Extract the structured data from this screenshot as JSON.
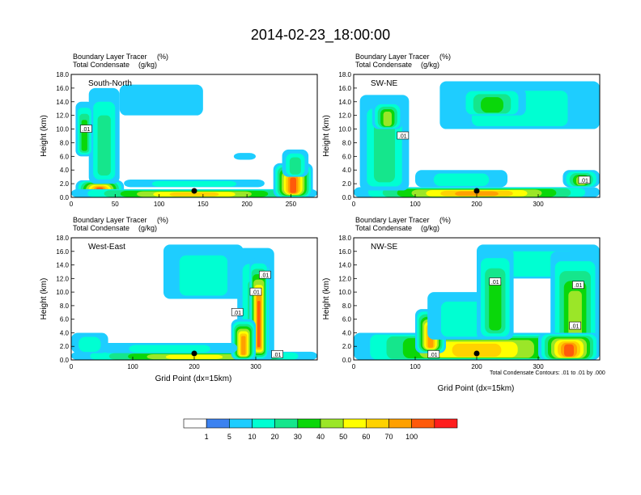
{
  "figure": {
    "title": "2014-02-23_18:00:00",
    "xlabel": "Grid Point (dx=15km)",
    "contour_note": "Total Condensate Contours: .01 to .01 by .000"
  },
  "chart_data": {
    "type": "heatmap",
    "title": "2014-02-23_18:00:00",
    "colorbar": {
      "levels": [
        "1",
        "5",
        "10",
        "20",
        "30",
        "40",
        "50",
        "60",
        "70",
        "100"
      ],
      "colors": [
        "#ffffff",
        "#3c82f0",
        "#1ecdff",
        "#00ffd2",
        "#15e68c",
        "#0ad70a",
        "#9be628",
        "#ffff00",
        "#ffd200",
        "#ffa000",
        "#ff5a0a",
        "#ff1e1e"
      ]
    },
    "panels": [
      {
        "id": "south-north",
        "label": "South-North",
        "subtitle_left": [
          "Boundary Layer Tracer",
          "Total Condensate"
        ],
        "subtitle_right": [
          "(%)",
          "(g/kg)"
        ],
        "ylabel": "Height (km)",
        "ylim": [
          0,
          18
        ],
        "yticks": [
          "0.0",
          "2.0",
          "4.0",
          "6.0",
          "8.0",
          "10.0",
          "12.0",
          "14.0",
          "16.0",
          "18.0"
        ],
        "xlim": [
          0,
          280
        ],
        "xticks": [
          {
            "v": 0,
            "t": "0"
          },
          {
            "v": 50,
            "t": "50"
          },
          {
            "v": 100,
            "t": "100"
          },
          {
            "v": 150,
            "t": "150"
          },
          {
            "v": 200,
            "t": "200"
          },
          {
            "v": 250,
            "t": "250"
          }
        ],
        "marker_x": 140,
        "contour_labels": [
          {
            "x": 17,
            "y": 10,
            "t": ".01"
          }
        ],
        "blobs": [
          {
            "x": [
              5,
              60
            ],
            "y": [
              0,
              2.5
            ],
            "v": 9
          },
          {
            "x": [
              0,
              280
            ],
            "y": [
              0,
              1.2
            ],
            "v": 7
          },
          {
            "x": [
              20,
              55
            ],
            "y": [
              2,
              16
            ],
            "v": 3
          },
          {
            "x": [
              5,
              25
            ],
            "y": [
              6,
              14
            ],
            "v": 4
          },
          {
            "x": [
              55,
              150
            ],
            "y": [
              12,
              16.5
            ],
            "v": 1
          },
          {
            "x": [
              230,
              275
            ],
            "y": [
              0,
              5
            ],
            "v": 9
          },
          {
            "x": [
              240,
              270
            ],
            "y": [
              3,
              7
            ],
            "v": 3
          },
          {
            "x": [
              185,
              210
            ],
            "y": [
              5.5,
              6.5
            ],
            "v": 1
          },
          {
            "x": [
              60,
              220
            ],
            "y": [
              1.5,
              2.6
            ],
            "v": 2
          }
        ]
      },
      {
        "id": "sw-ne",
        "label": "SW-NE",
        "subtitle_left": [
          "Boundary Layer Tracer",
          "Total Condensate"
        ],
        "subtitle_right": [
          "(%)",
          "(g/kg)"
        ],
        "ylabel": "Height (km)",
        "ylim": [
          0,
          18
        ],
        "yticks": [
          "0.0",
          "2.0",
          "4.0",
          "6.0",
          "8.0",
          "10.0",
          "12.0",
          "14.0",
          "16.0",
          "18.0"
        ],
        "xlim": [
          0,
          400
        ],
        "xticks": [
          {
            "v": 0,
            "t": "0"
          },
          {
            "v": 100,
            "t": "100"
          },
          {
            "v": 200,
            "t": "200"
          },
          {
            "v": 300,
            "t": "300"
          }
        ],
        "marker_x": 200,
        "contour_labels": [
          {
            "x": 80,
            "y": 9,
            "t": ".01"
          },
          {
            "x": 375,
            "y": 2.5,
            "t": ".01"
          }
        ],
        "blobs": [
          {
            "x": [
              0,
              400
            ],
            "y": [
              0,
              1.5
            ],
            "v": 8
          },
          {
            "x": [
              10,
              90
            ],
            "y": [
              1,
              15
            ],
            "v": 3
          },
          {
            "x": [
              30,
              80
            ],
            "y": [
              10,
              14
            ],
            "v": 5
          },
          {
            "x": [
              140,
              400
            ],
            "y": [
              10,
              17
            ],
            "v": 2
          },
          {
            "x": [
              170,
              280
            ],
            "y": [
              12,
              16
            ],
            "v": 4
          },
          {
            "x": [
              100,
              250
            ],
            "y": [
              1.5,
              4
            ],
            "v": 2
          },
          {
            "x": [
              340,
              400
            ],
            "y": [
              1.5,
              4
            ],
            "v": 5
          }
        ]
      },
      {
        "id": "west-east",
        "label": "West-East",
        "subtitle_left": [
          "Boundary Layer Tracer",
          "Total Condensate"
        ],
        "subtitle_right": [
          "(%)",
          "(g/kg)"
        ],
        "ylabel": "Height (km)",
        "ylim": [
          0,
          18
        ],
        "yticks": [
          "0.0",
          "2.0",
          "4.0",
          "6.0",
          "8.0",
          "10.0",
          "12.0",
          "14.0",
          "16.0",
          "18.0"
        ],
        "xlim": [
          0,
          400
        ],
        "xticks": [
          {
            "v": 0,
            "t": "0"
          },
          {
            "v": 100,
            "t": "100"
          },
          {
            "v": 200,
            "t": "200"
          },
          {
            "v": 300,
            "t": "300"
          }
        ],
        "marker_x": 200,
        "contour_labels": [
          {
            "x": 270,
            "y": 7,
            "t": ".01"
          },
          {
            "x": 300,
            "y": 10,
            "t": ".01"
          },
          {
            "x": 315,
            "y": 12.5,
            "t": ".01"
          },
          {
            "x": 335,
            "y": 0.8,
            "t": ".01"
          }
        ],
        "blobs": [
          {
            "x": [
              0,
              400
            ],
            "y": [
              0,
              1.2
            ],
            "v": 6
          },
          {
            "x": [
              0,
              60
            ],
            "y": [
              1,
              4
            ],
            "v": 2
          },
          {
            "x": [
              150,
              280
            ],
            "y": [
              9,
              17
            ],
            "v": 2
          },
          {
            "x": [
              270,
              330
            ],
            "y": [
              0,
              16.5
            ],
            "v": 3
          },
          {
            "x": [
              290,
              320
            ],
            "y": [
              0,
              15
            ],
            "v": 9
          },
          {
            "x": [
              260,
              300
            ],
            "y": [
              0,
              6
            ],
            "v": 8
          },
          {
            "x": [
              50,
              270
            ],
            "y": [
              1,
              2.5
            ],
            "v": 2
          }
        ]
      },
      {
        "id": "nw-se",
        "label": "NW-SE",
        "subtitle_left": [
          "Boundary Layer Tracer",
          "Total Condensate"
        ],
        "subtitle_right": [
          "(%)",
          "(g/kg)"
        ],
        "ylabel": "Height (km)",
        "ylim": [
          0,
          18
        ],
        "yticks": [
          "0.0",
          "2.0",
          "4.0",
          "6.0",
          "8.0",
          "10.0",
          "12.0",
          "14.0",
          "16.0",
          "18.0"
        ],
        "xlim": [
          0,
          400
        ],
        "xticks": [
          {
            "v": 0,
            "t": "0"
          },
          {
            "v": 100,
            "t": "100"
          },
          {
            "v": 200,
            "t": "200"
          },
          {
            "v": 300,
            "t": "300"
          }
        ],
        "marker_x": 200,
        "contour_labels": [
          {
            "x": 230,
            "y": 11.5,
            "t": ".01"
          },
          {
            "x": 365,
            "y": 11,
            "t": ".01"
          },
          {
            "x": 360,
            "y": 5,
            "t": ".01"
          },
          {
            "x": 130,
            "y": 0.8,
            "t": ".01"
          }
        ],
        "blobs": [
          {
            "x": [
              0,
              400
            ],
            "y": [
              0,
              4
            ],
            "v": 7
          },
          {
            "x": [
              100,
              150
            ],
            "y": [
              1,
              7.5
            ],
            "v": 8
          },
          {
            "x": [
              120,
              230
            ],
            "y": [
              3,
              10
            ],
            "v": 2
          },
          {
            "x": [
              200,
              400
            ],
            "y": [
              12,
              17
            ],
            "v": 2
          },
          {
            "x": [
              200,
              260
            ],
            "y": [
              3,
              16.5
            ],
            "v": 4
          },
          {
            "x": [
              320,
              400
            ],
            "y": [
              0,
              16
            ],
            "v": 5
          },
          {
            "x": [
              300,
              400
            ],
            "y": [
              0,
              4
            ],
            "v": 9
          }
        ]
      }
    ]
  }
}
